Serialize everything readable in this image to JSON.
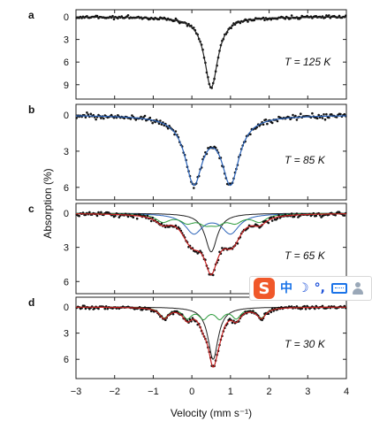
{
  "chart_data": {
    "type": "scatter",
    "xlabel": "Velocity (mm s⁻¹)",
    "ylabel": "Absorption (%)",
    "xlim": [
      -3,
      4
    ],
    "x_ticks": [
      "−3",
      "−2",
      "−1",
      "0",
      "1",
      "2",
      "3",
      "4"
    ],
    "panels": [
      {
        "label": "a",
        "temperature": "T = 125 K",
        "ylim": [
          0,
          10.2
        ],
        "y_ticks": [
          0,
          3,
          6,
          9
        ],
        "fit_color": "#222222",
        "components": [
          {
            "type": "singlet",
            "center": 0.5,
            "width": 0.42,
            "depth": 9.4,
            "color": "#222222"
          }
        ],
        "subspectra": []
      },
      {
        "label": "b",
        "temperature": "T = 85 K",
        "ylim": [
          0,
          6.6
        ],
        "y_ticks": [
          0,
          3,
          6
        ],
        "fit_color": "#2a62b8",
        "components": [
          {
            "type": "doublet",
            "centers": [
              0.05,
              1.0
            ],
            "width": 0.55,
            "depth": 5.7,
            "color": "#2a62b8"
          }
        ],
        "subspectra": []
      },
      {
        "label": "c",
        "temperature": "T = 65 K",
        "ylim": [
          0,
          6.6
        ],
        "y_ticks": [
          0,
          3,
          6
        ],
        "fit_color": "#c42020",
        "components": [
          {
            "type": "singlet",
            "center": 0.5,
            "width": 0.38,
            "depth": 3.4,
            "color": "#222222"
          },
          {
            "type": "doublet",
            "centers": [
              0.05,
              1.0
            ],
            "width": 0.55,
            "depth": 1.8,
            "color": "#2a62b8"
          },
          {
            "type": "sextet",
            "center": 0.5,
            "lines": [
              -0.75,
              -0.12,
              0.35,
              0.65,
              1.12,
              1.75
            ],
            "width": 0.45,
            "depth": 1.1,
            "color": "#2a9a3a"
          }
        ],
        "subspectra": [
          "black",
          "blue",
          "green"
        ]
      },
      {
        "label": "d",
        "temperature": "T = 30 K",
        "ylim": [
          0,
          7.6
        ],
        "y_ticks": [
          0,
          3,
          6
        ],
        "fit_color": "#c42020",
        "components": [
          {
            "type": "singlet",
            "center": 0.55,
            "width": 0.32,
            "depth": 6.0,
            "color": "#222222"
          },
          {
            "type": "sextet",
            "center": 0.5,
            "lines": [
              -0.72,
              -0.12,
              0.3,
              0.72,
              1.15,
              1.8
            ],
            "width": 0.28,
            "depth": 1.9,
            "color": "#2a9a3a"
          }
        ],
        "subspectra": [
          "black",
          "green"
        ]
      }
    ]
  },
  "overlay": {
    "ime_logo": "S",
    "ime_lang": "中",
    "ime_moon": "☽",
    "ime_punct": "°,",
    "icons": [
      "sogou-logo-icon",
      "moon-icon",
      "keyboard-icon",
      "user-icon"
    ]
  }
}
